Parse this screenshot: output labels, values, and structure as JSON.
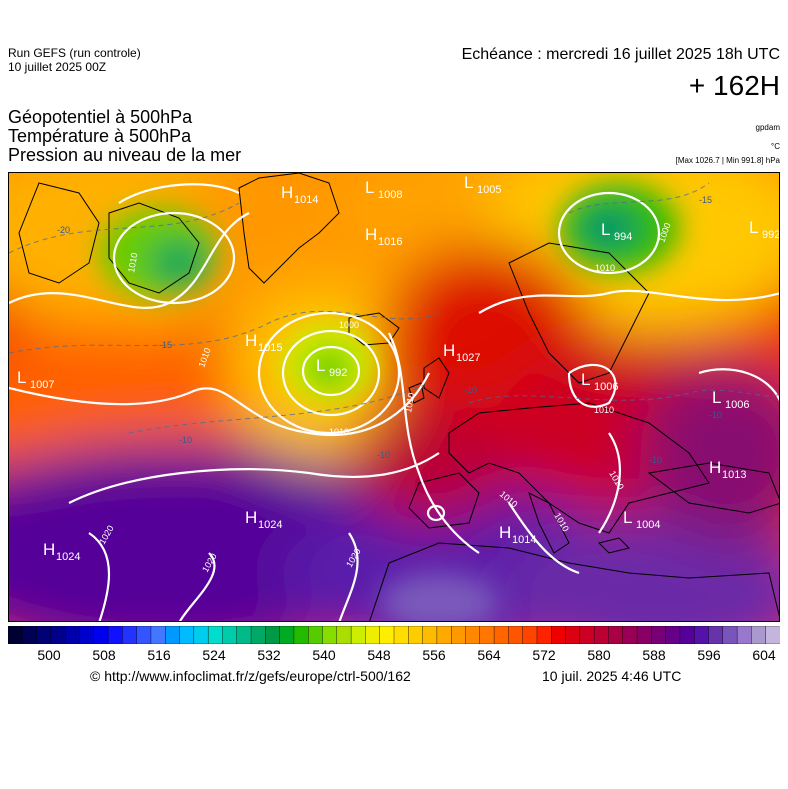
{
  "header": {
    "run_line1": "Run GEFS (run controle)",
    "run_line2": "10 juillet 2025 00Z",
    "echeance": "Echéance : mercredi 16 juillet 2025 18h UTC",
    "lead_time": "+ 162H"
  },
  "params": {
    "line1": "Géopotentiel à 500hPa",
    "line2": "Température à 500hPa",
    "line3": "Pression au niveau de la mer"
  },
  "units": {
    "geopotential": "gpdam",
    "temperature": "°C",
    "pressure": "[Max 1026.7 | Min 991.8] hPa"
  },
  "colorbar": {
    "colors": [
      "#000033",
      "#000055",
      "#000077",
      "#00008b",
      "#0000aa",
      "#0000cc",
      "#0000ee",
      "#1111ff",
      "#2233ff",
      "#3355ff",
      "#4477ff",
      "#0099ff",
      "#00bbff",
      "#00ccee",
      "#00ddcc",
      "#00ccaa",
      "#00bb88",
      "#00aa66",
      "#009944",
      "#00aa22",
      "#22bb00",
      "#55cc00",
      "#88dd00",
      "#aadd00",
      "#ccee00",
      "#eeee00",
      "#ffee00",
      "#ffdd00",
      "#ffcc00",
      "#ffbb00",
      "#ffaa00",
      "#ff9900",
      "#ff8800",
      "#ff7700",
      "#ff6600",
      "#ff5500",
      "#ff4400",
      "#ff2200",
      "#ee0000",
      "#dd0011",
      "#cc0022",
      "#bb0033",
      "#aa0044",
      "#990055",
      "#880066",
      "#770077",
      "#660088",
      "#550099",
      "#5511aa",
      "#6633aa",
      "#7755bb",
      "#9977cc",
      "#aa99cc",
      "#c4b5dc"
    ],
    "tick_labels": [
      "500",
      "508",
      "516",
      "524",
      "532",
      "540",
      "548",
      "556",
      "564",
      "572",
      "580",
      "588",
      "596",
      "604"
    ]
  },
  "map_labels": {
    "pressure_centers": [
      {
        "type": "H",
        "value": "1014"
      },
      {
        "type": "L",
        "value": "1008"
      },
      {
        "type": "L",
        "value": "1005"
      },
      {
        "type": "H",
        "value": "1016"
      },
      {
        "type": "L",
        "value": "994"
      },
      {
        "type": "L",
        "value": "992"
      },
      {
        "type": "H",
        "value": "1015"
      },
      {
        "type": "L",
        "value": "992"
      },
      {
        "type": "H",
        "value": "1027"
      },
      {
        "type": "L",
        "value": "1007"
      },
      {
        "type": "L",
        "value": "1006"
      },
      {
        "type": "L",
        "value": "1006"
      },
      {
        "type": "H",
        "value": "1013"
      },
      {
        "type": "H",
        "value": "1024"
      },
      {
        "type": "H",
        "value": "1024"
      },
      {
        "type": "L",
        "value": "1004"
      },
      {
        "type": "H",
        "value": "1014"
      }
    ],
    "isobar_labels": [
      "1010",
      "1000",
      "1010",
      "1010",
      "1010",
      "1020",
      "1020",
      "1020",
      "1010",
      "1010",
      "1010",
      "1010",
      "1000",
      "1010"
    ],
    "temperature_labels": [
      "-20",
      "-15",
      "-10",
      "-10",
      "-10",
      "-10",
      "-10",
      "-15"
    ]
  },
  "footer": {
    "source": "© http://www.infoclimat.fr/z/gefs/europe/ctrl-500/162",
    "generated": "10 juil. 2025  4:46 UTC"
  }
}
